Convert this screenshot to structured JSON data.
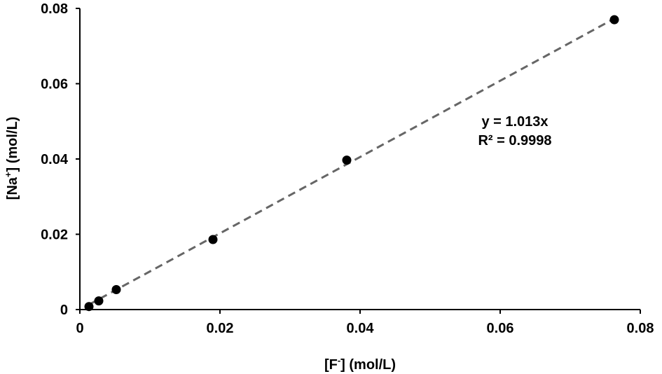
{
  "chart_data": {
    "type": "scatter",
    "title": "",
    "xlabel": {
      "base": "[F",
      "sup": "-",
      "rest": "] (mol/L)"
    },
    "ylabel": {
      "base": "[Na",
      "sup": "+",
      "rest": "] (mol/L)"
    },
    "xlim": [
      0,
      0.08
    ],
    "ylim": [
      0,
      0.08
    ],
    "x_ticks": [
      {
        "value": 0,
        "label": "0"
      },
      {
        "value": 0.02,
        "label": "0.02"
      },
      {
        "value": 0.04,
        "label": "0.04"
      },
      {
        "value": 0.06,
        "label": "0.06"
      },
      {
        "value": 0.08,
        "label": "0.08"
      }
    ],
    "y_ticks": [
      {
        "value": 0,
        "label": "0"
      },
      {
        "value": 0.02,
        "label": "0.02"
      },
      {
        "value": 0.04,
        "label": "0.04"
      },
      {
        "value": 0.06,
        "label": "0.06"
      },
      {
        "value": 0.08,
        "label": "0.08"
      }
    ],
    "grid": false,
    "legend": "none",
    "series": [
      {
        "points": [
          {
            "x": 0.0013,
            "y": 0.0008
          },
          {
            "x": 0.0027,
            "y": 0.0023
          },
          {
            "x": 0.0052,
            "y": 0.0053
          },
          {
            "x": 0.019,
            "y": 0.0186
          },
          {
            "x": 0.0381,
            "y": 0.0397
          },
          {
            "x": 0.0763,
            "y": 0.077
          }
        ],
        "marker_color": "#000000"
      }
    ],
    "trendline": {
      "slope": 1.013,
      "x_range": [
        0.0013,
        0.0763
      ],
      "color": "#666666",
      "style": "dashed"
    },
    "annotations": {
      "equation": "y = 1.013x",
      "r_squared": "R² = 0.9998"
    }
  }
}
